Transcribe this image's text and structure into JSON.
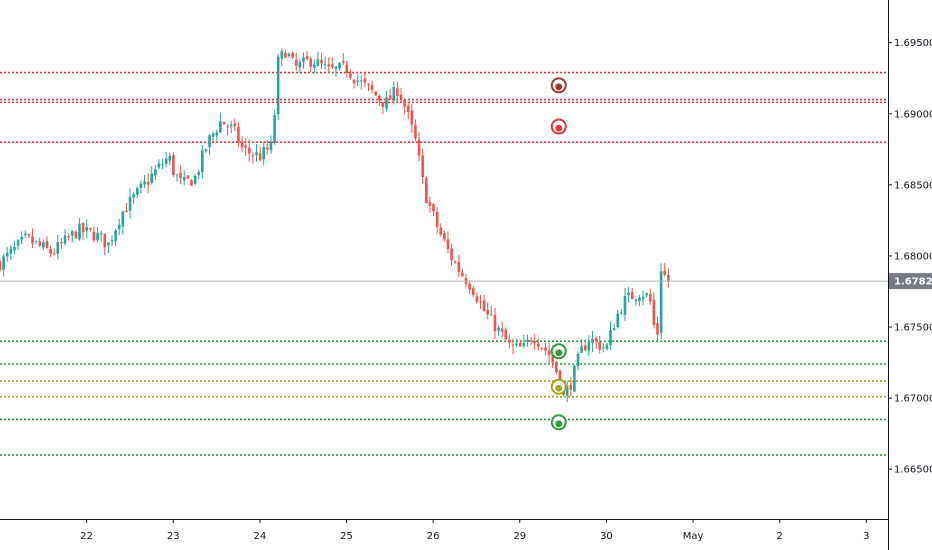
{
  "chart_data": {
    "type": "candlestick",
    "y_axis": {
      "ticks": [
        "1.66500",
        "1.67000",
        "1.67500",
        "1.68000",
        "1.68500",
        "1.69000",
        "1.69500"
      ],
      "tick_values": [
        1.665,
        1.67,
        1.675,
        1.68,
        1.685,
        1.69,
        1.695
      ],
      "range": [
        1.6615,
        1.698
      ]
    },
    "x_axis": {
      "labels": [
        "22",
        "23",
        "24",
        "25",
        "26",
        "29",
        "30",
        "May",
        "2",
        "3"
      ],
      "label_day_index": [
        0.7,
        1.7,
        2.7,
        3.7,
        4.7,
        5.7,
        6.7,
        7.7,
        8.7,
        9.7
      ],
      "range_days": [
        -0.3,
        9.95
      ]
    },
    "last_price": {
      "label": "1.67823",
      "value": 1.67823
    },
    "resistance_levels": [
      1.6929,
      1.691,
      1.6908,
      1.688
    ],
    "support_levels": [
      1.674,
      1.6724,
      1.6712,
      1.6701,
      1.6685,
      1.666
    ],
    "support_level_colors": [
      "#1e9e3a",
      "#1e9e3a",
      "#a8a020",
      "#a8a020",
      "#1e9e3a",
      "#1e9e3a"
    ],
    "markers": [
      {
        "value": 1.692,
        "color": "#9b3a32",
        "icon": "circle-marker-icon"
      },
      {
        "value": 1.6891,
        "color": "#e0393b",
        "icon": "circle-marker-icon"
      },
      {
        "value": 1.6733,
        "color": "#2e9e3a",
        "icon": "circle-marker-icon"
      },
      {
        "value": 1.6708,
        "color": "#a8a020",
        "icon": "circle-marker-icon"
      },
      {
        "value": 1.6683,
        "color": "#2e9e3a",
        "icon": "circle-marker-icon"
      }
    ],
    "marker_day": 6.15,
    "close_path": [
      [
        -0.3,
        1.6795
      ],
      [
        0.0,
        1.6812
      ],
      [
        0.3,
        1.6802
      ],
      [
        0.6,
        1.6818
      ],
      [
        0.8,
        1.6815
      ],
      [
        0.95,
        1.6808
      ],
      [
        1.1,
        1.683
      ],
      [
        1.3,
        1.6845
      ],
      [
        1.5,
        1.686
      ],
      [
        1.65,
        1.687
      ],
      [
        1.7,
        1.686
      ],
      [
        1.8,
        1.685
      ],
      [
        1.95,
        1.6855
      ],
      [
        2.1,
        1.688
      ],
      [
        2.25,
        1.6895
      ],
      [
        2.4,
        1.6888
      ],
      [
        2.5,
        1.6875
      ],
      [
        2.6,
        1.6872
      ],
      [
        2.7,
        1.687
      ],
      [
        2.85,
        1.6878
      ],
      [
        2.9,
        1.6935
      ],
      [
        3.0,
        1.6945
      ],
      [
        3.1,
        1.6932
      ],
      [
        3.3,
        1.6938
      ],
      [
        3.5,
        1.693
      ],
      [
        3.7,
        1.6932
      ],
      [
        3.8,
        1.6925
      ],
      [
        4.0,
        1.6915
      ],
      [
        4.15,
        1.6907
      ],
      [
        4.3,
        1.6918
      ],
      [
        4.4,
        1.69
      ],
      [
        4.5,
        1.688
      ],
      [
        4.6,
        1.6845
      ],
      [
        4.75,
        1.682
      ],
      [
        4.9,
        1.68
      ],
      [
        5.0,
        1.679
      ],
      [
        5.15,
        1.6778
      ],
      [
        5.3,
        1.676
      ],
      [
        5.45,
        1.6748
      ],
      [
        5.6,
        1.6735
      ],
      [
        5.75,
        1.6735
      ],
      [
        5.85,
        1.6745
      ],
      [
        6.05,
        1.673
      ],
      [
        6.15,
        1.6715
      ],
      [
        6.2,
        1.67
      ],
      [
        6.3,
        1.6712
      ],
      [
        6.4,
        1.6732
      ],
      [
        6.5,
        1.6742
      ],
      [
        6.6,
        1.6738
      ],
      [
        6.7,
        1.6735
      ],
      [
        6.8,
        1.6755
      ],
      [
        6.9,
        1.6768
      ],
      [
        7.0,
        1.6772
      ],
      [
        7.1,
        1.6775
      ],
      [
        7.2,
        1.677
      ],
      [
        7.25,
        1.675
      ],
      [
        7.3,
        1.6745
      ],
      [
        7.33,
        1.6792
      ],
      [
        7.38,
        1.6785
      ],
      [
        7.42,
        1.6782
      ]
    ],
    "colors": {
      "up": "#26a69a",
      "down": "#ef5350",
      "resistance": "#e0393b",
      "last_price_line": "#b2b5be",
      "last_price_badge": "#787b86",
      "grid_axis": "#131722"
    }
  }
}
